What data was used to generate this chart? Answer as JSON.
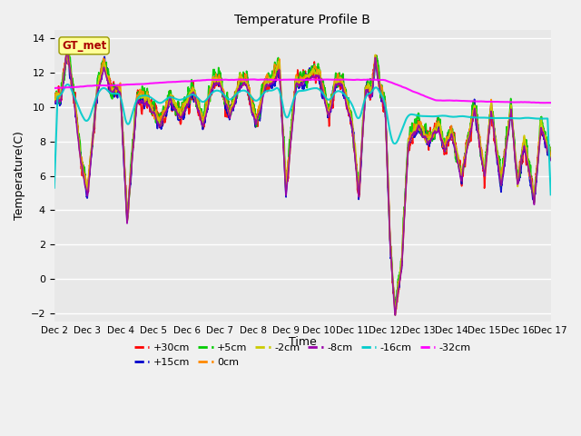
{
  "title": "Temperature Profile B",
  "xlabel": "Time",
  "ylabel": "Temperature(C)",
  "xlim": [
    0,
    15
  ],
  "ylim": [
    -2.5,
    14.5
  ],
  "yticks": [
    -2,
    0,
    2,
    4,
    6,
    8,
    10,
    12,
    14
  ],
  "xtick_labels": [
    "Dec 2",
    "Dec 3",
    "Dec 4",
    "Dec 5",
    "Dec 6",
    "Dec 7",
    "Dec 8",
    "Dec 9",
    "Dec 10",
    "Dec 11",
    "Dec 12",
    "Dec 13",
    "Dec 14",
    "Dec 15",
    "Dec 16",
    "Dec 17"
  ],
  "fig_bg": "#f0f0f0",
  "axes_bg": "#e8e8e8",
  "series": [
    {
      "label": "+30cm",
      "color": "#ff0000",
      "lw": 1.2
    },
    {
      "label": "+15cm",
      "color": "#0000cc",
      "lw": 1.2
    },
    {
      "label": "+5cm",
      "color": "#00cc00",
      "lw": 1.2
    },
    {
      "label": "0cm",
      "color": "#ff8800",
      "lw": 1.2
    },
    {
      "label": "-2cm",
      "color": "#cccc00",
      "lw": 1.2
    },
    {
      "label": "-8cm",
      "color": "#9900aa",
      "lw": 1.2
    },
    {
      "label": "-16cm",
      "color": "#00cccc",
      "lw": 1.5
    },
    {
      "label": "-32cm",
      "color": "#ff00ff",
      "lw": 1.5
    }
  ],
  "gt_met_label": "GT_met",
  "gt_met_color": "#aa0000",
  "gt_met_bg": "#ffff99",
  "gt_met_edge": "#999900"
}
